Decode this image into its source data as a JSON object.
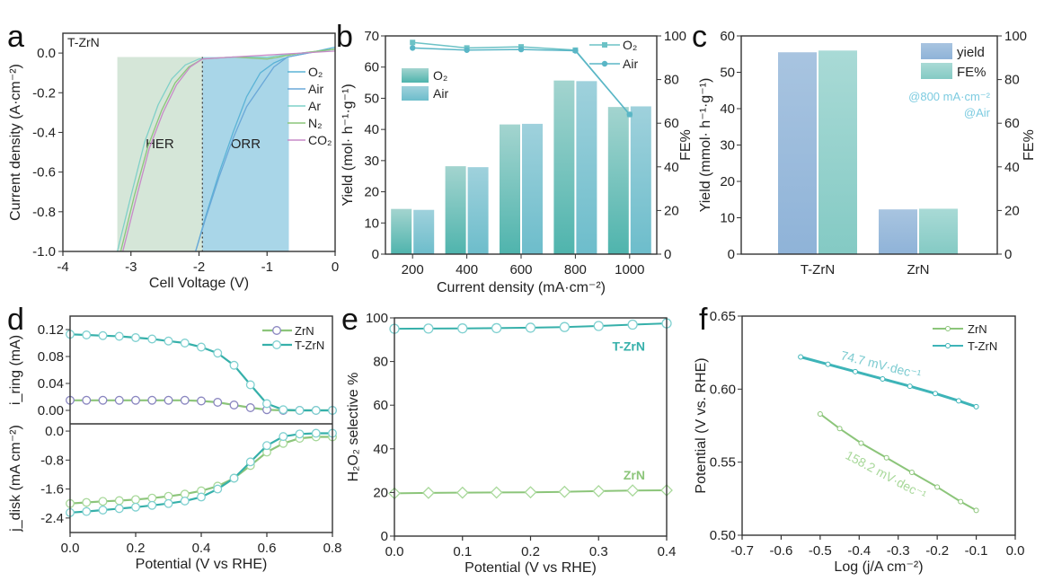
{
  "chart_data": [
    {
      "panel": "a",
      "type": "line",
      "annotation": "T-ZrN",
      "xlabel": "Cell Voltage (V)",
      "ylabel": "Current density (A·cm⁻²)",
      "xlim": [
        -4,
        0
      ],
      "ylim": [
        -1.0,
        0.1
      ],
      "xticks": [
        "-4",
        "-3",
        "-2",
        "-1",
        "0"
      ],
      "yticks": [
        "0.0",
        "-0.2",
        "-0.4",
        "-0.6",
        "-0.8",
        "-1.0"
      ],
      "regions": [
        {
          "label": "HER",
          "x": [
            -3.2,
            -1.95
          ],
          "color": "#d5e6d8"
        },
        {
          "label": "ORR",
          "x": [
            -1.95,
            -0.68
          ],
          "color": "#a9d6e8"
        }
      ],
      "divider_x": -1.95,
      "legend": [
        "O₂",
        "Air",
        "Ar",
        "N₂",
        "CO₂"
      ],
      "series": [
        {
          "name": "O₂",
          "color": "#5bb3d6",
          "x": [
            -2.05,
            -1.9,
            -1.7,
            -1.5,
            -1.3,
            -1.1,
            -0.9,
            -0.7,
            -0.4,
            0
          ],
          "y": [
            -1.0,
            -0.82,
            -0.6,
            -0.4,
            -0.22,
            -0.1,
            -0.05,
            -0.02,
            0.0,
            0.03
          ]
        },
        {
          "name": "Air",
          "color": "#6aa8d8",
          "x": [
            -2.05,
            -1.9,
            -1.7,
            -1.5,
            -1.3,
            -1.1,
            -0.9,
            -0.7,
            -0.4,
            0
          ],
          "y": [
            -1.0,
            -0.83,
            -0.62,
            -0.43,
            -0.27,
            -0.17,
            -0.07,
            -0.02,
            0.0,
            0.02
          ]
        },
        {
          "name": "Ar",
          "color": "#7fd0c8",
          "x": [
            -3.2,
            -3.0,
            -2.8,
            -2.6,
            -2.4,
            -2.2,
            -2.0,
            -1.5,
            -1.0,
            -0.5,
            0
          ],
          "y": [
            -1.0,
            -0.72,
            -0.45,
            -0.26,
            -0.13,
            -0.06,
            -0.03,
            -0.02,
            -0.02,
            0.0,
            0.02
          ]
        },
        {
          "name": "N₂",
          "color": "#8cc57a",
          "x": [
            -3.15,
            -2.95,
            -2.75,
            -2.55,
            -2.35,
            -2.15,
            -1.95,
            -1.5,
            -1.0,
            -0.5,
            0
          ],
          "y": [
            -1.0,
            -0.72,
            -0.47,
            -0.29,
            -0.15,
            -0.07,
            -0.03,
            -0.02,
            -0.03,
            0.0,
            0.02
          ]
        },
        {
          "name": "CO₂",
          "color": "#c88ac8",
          "x": [
            -3.12,
            -2.93,
            -2.73,
            -2.53,
            -2.33,
            -2.13,
            -1.95,
            -1.5,
            -1.0,
            -0.5,
            0
          ],
          "y": [
            -1.0,
            -0.74,
            -0.48,
            -0.3,
            -0.16,
            -0.07,
            -0.03,
            -0.02,
            -0.01,
            0.0,
            0.01
          ]
        }
      ]
    },
    {
      "panel": "b",
      "type": "bar",
      "xlabel": "Current density (mA·cm⁻²)",
      "ylabel": "Yield (mol· h⁻¹·g⁻¹)",
      "y2label": "FE%",
      "ylim": [
        0,
        70
      ],
      "y2lim": [
        0,
        100
      ],
      "categories": [
        "200",
        "400",
        "600",
        "800",
        "1000"
      ],
      "yticks": [
        "0",
        "10",
        "20",
        "30",
        "40",
        "50",
        "60",
        "70"
      ],
      "y2ticks": [
        "0",
        "20",
        "40",
        "60",
        "80",
        "100"
      ],
      "bar_legend": [
        "O₂",
        "Air"
      ],
      "line_legend": [
        "O₂",
        "Air"
      ],
      "series": [
        {
          "name": "O₂",
          "kind": "bar",
          "color": "#5ab8b0",
          "values": [
            14.5,
            28.2,
            41.6,
            55.7,
            47.2
          ]
        },
        {
          "name": "Air",
          "kind": "bar",
          "color": "#72c0cc",
          "values": [
            14.2,
            27.9,
            41.8,
            55.5,
            47.4
          ]
        },
        {
          "name": "O₂",
          "kind": "line",
          "axis": "y2",
          "marker": "square",
          "color": "#6cc2c6",
          "values": [
            97,
            94.5,
            95,
            93.5,
            64
          ]
        },
        {
          "name": "Air",
          "kind": "line",
          "axis": "y2",
          "marker": "circle",
          "color": "#5ab6c6",
          "values": [
            94.5,
            93.5,
            93.8,
            93.2,
            64
          ]
        }
      ]
    },
    {
      "panel": "c",
      "type": "bar",
      "xlabel": "",
      "ylabel": "Yield (mmol· h⁻¹·g⁻¹)",
      "y2label": "FE%",
      "ylim": [
        0,
        60
      ],
      "y2lim": [
        0,
        100
      ],
      "categories": [
        "T-ZrN",
        "ZrN"
      ],
      "yticks": [
        "0",
        "10",
        "20",
        "30",
        "40",
        "50",
        "60"
      ],
      "y2ticks": [
        "0",
        "20",
        "40",
        "60",
        "80",
        "100"
      ],
      "legend": [
        "yield",
        "FE%"
      ],
      "annotations": [
        "@800 mA·cm⁻²",
        "@Air"
      ],
      "series": [
        {
          "name": "yield",
          "axis": "y",
          "color": "#8fb4d8",
          "values": [
            55.5,
            12.3
          ]
        },
        {
          "name": "FE%",
          "axis": "y2",
          "color": "#8fcfc8",
          "values": [
            93.3,
            20.8
          ]
        }
      ]
    },
    {
      "panel": "d",
      "type": "line",
      "xlabel": "Potential (V vs RHE)",
      "ylabel_top": "i_ring (mA)",
      "ylabel_bottom": "j_disk (mA cm⁻²)",
      "xlim": [
        0,
        0.8
      ],
      "ylim_top": [
        -0.02,
        0.14
      ],
      "ylim_bottom": [
        -2.8,
        0.2
      ],
      "xticks": [
        "0.0",
        "0.2",
        "0.4",
        "0.6",
        "0.8"
      ],
      "yticks_top": [
        "0.00",
        "0.04",
        "0.08",
        "0.12"
      ],
      "yticks_bottom": [
        "0.0",
        "-0.8",
        "-1.6",
        "-2.4"
      ],
      "legend": [
        "ZrN",
        "T-ZrN"
      ],
      "x": [
        0,
        0.05,
        0.1,
        0.15,
        0.2,
        0.25,
        0.3,
        0.35,
        0.4,
        0.45,
        0.5,
        0.55,
        0.6,
        0.65,
        0.7,
        0.75,
        0.8
      ],
      "series": [
        {
          "name": "ZrN",
          "panel": "ring",
          "line_color": "#8cc57a",
          "marker_color": "#8a86c0",
          "values": [
            0.015,
            0.015,
            0.015,
            0.015,
            0.015,
            0.015,
            0.015,
            0.015,
            0.014,
            0.012,
            0.008,
            0.004,
            0.001,
            0.0,
            0.0,
            0.0,
            0.0
          ]
        },
        {
          "name": "T-ZrN",
          "panel": "ring",
          "line_color": "#36b0aa",
          "marker_color": "#7fd0d0",
          "values": [
            0.113,
            0.112,
            0.111,
            0.11,
            0.108,
            0.106,
            0.103,
            0.1,
            0.094,
            0.085,
            0.067,
            0.038,
            0.01,
            0.001,
            0.0,
            0.0,
            0.0
          ]
        },
        {
          "name": "ZrN",
          "panel": "disk",
          "line_color": "#8cc57a",
          "marker_color": "#a8d89a",
          "values": [
            -2.0,
            -1.97,
            -1.94,
            -1.92,
            -1.89,
            -1.85,
            -1.8,
            -1.74,
            -1.65,
            -1.52,
            -1.3,
            -0.95,
            -0.58,
            -0.34,
            -0.2,
            -0.16,
            -0.16
          ]
        },
        {
          "name": "T-ZrN",
          "panel": "disk",
          "line_color": "#36b0aa",
          "marker_color": "#7fd0d0",
          "values": [
            -2.25,
            -2.22,
            -2.18,
            -2.14,
            -2.1,
            -2.05,
            -2.0,
            -1.93,
            -1.82,
            -1.6,
            -1.3,
            -0.85,
            -0.4,
            -0.15,
            -0.08,
            -0.06,
            -0.06
          ]
        }
      ]
    },
    {
      "panel": "e",
      "type": "line",
      "xlabel": "Potential (V vs RHE)",
      "ylabel": "H₂O₂ selective %",
      "xlim": [
        0,
        0.4
      ],
      "ylim": [
        0,
        100
      ],
      "xticks": [
        "0.0",
        "0.1",
        "0.2",
        "0.3",
        "0.4"
      ],
      "yticks": [
        "0",
        "20",
        "40",
        "60",
        "80",
        "100"
      ],
      "x": [
        0,
        0.05,
        0.1,
        0.15,
        0.2,
        0.25,
        0.3,
        0.35,
        0.4
      ],
      "series": [
        {
          "name": "T-ZrN",
          "marker": "circle",
          "color": "#36b0aa",
          "values": [
            95.0,
            95.1,
            95.2,
            95.3,
            95.5,
            95.8,
            96.3,
            96.9,
            97.5
          ]
        },
        {
          "name": "ZrN",
          "marker": "diamond",
          "color": "#8cc57a",
          "values": [
            19.6,
            19.8,
            19.9,
            20.0,
            20.1,
            20.3,
            20.6,
            20.9,
            21.0
          ]
        }
      ]
    },
    {
      "panel": "f",
      "type": "line",
      "xlabel": "Log (j/A cm⁻²)",
      "ylabel": "Potential (V vs. RHE)",
      "xlim": [
        -0.7,
        0.0
      ],
      "ylim": [
        0.5,
        0.65
      ],
      "xticks": [
        "-0.7",
        "-0.6",
        "-0.5",
        "-0.4",
        "-0.3",
        "-0.2",
        "-0.1",
        "0.0"
      ],
      "yticks": [
        "0.50",
        "0.55",
        "0.60",
        "0.65"
      ],
      "legend": [
        "ZrN",
        "T-ZrN"
      ],
      "series": [
        {
          "name": "ZrN",
          "color": "#8cc57a",
          "slope_label": "158.2 mV·dec⁻¹",
          "x": [
            -0.5,
            -0.45,
            -0.395,
            -0.33,
            -0.265,
            -0.2,
            -0.14,
            -0.1
          ],
          "y": [
            0.583,
            0.573,
            0.563,
            0.553,
            0.543,
            0.533,
            0.523,
            0.517
          ]
        },
        {
          "name": "T-ZrN",
          "color": "#3eb4b8",
          "slope_label": "74.7 mV·dec⁻¹",
          "x": [
            -0.55,
            -0.48,
            -0.41,
            -0.34,
            -0.27,
            -0.205,
            -0.145,
            -0.1
          ],
          "y": [
            0.622,
            0.617,
            0.612,
            0.607,
            0.602,
            0.597,
            0.592,
            0.588
          ]
        }
      ]
    }
  ]
}
